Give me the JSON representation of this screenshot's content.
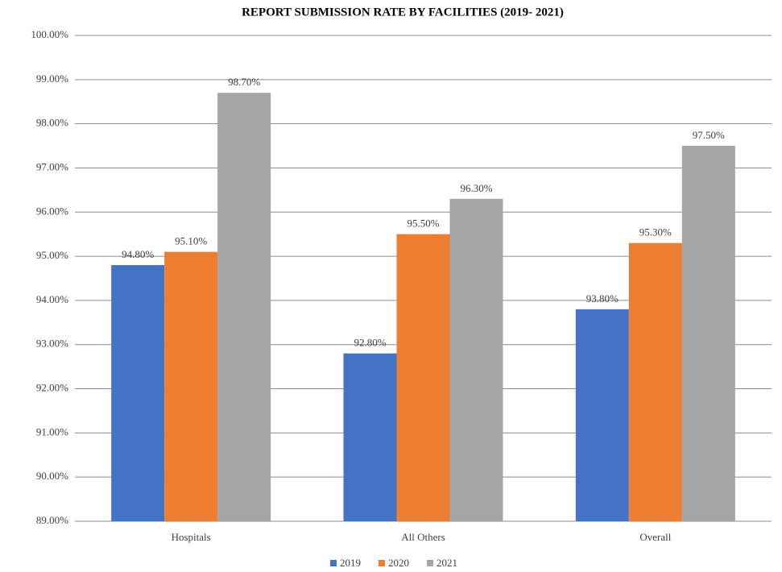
{
  "chart_data": {
    "type": "bar",
    "title": "REPORT SUBMISSION RATE BY FACILITIES (2019- 2021)",
    "categories": [
      "Hospitals",
      "All Others",
      "Overall"
    ],
    "series": [
      {
        "name": "2019",
        "color": "#4472c4",
        "values": [
          94.8,
          92.8,
          93.8
        ],
        "value_labels": [
          "94.80%",
          "92.80%",
          "93.80%"
        ]
      },
      {
        "name": "2020",
        "color": "#ed7d31",
        "values": [
          95.1,
          95.5,
          95.3
        ],
        "value_labels": [
          "95.10%",
          "95.50%",
          "95.30%"
        ]
      },
      {
        "name": "2021",
        "color": "#a5a5a5",
        "values": [
          98.7,
          96.3,
          97.5
        ],
        "value_labels": [
          "98.70%",
          "96.30%",
          "97.50%"
        ]
      }
    ],
    "ylim": [
      89,
      100
    ],
    "yticks": [
      {
        "value": 89,
        "label": "89.00%"
      },
      {
        "value": 90,
        "label": "90.00%"
      },
      {
        "value": 91,
        "label": "91.00%"
      },
      {
        "value": 92,
        "label": "92.00%"
      },
      {
        "value": 93,
        "label": "93.00%"
      },
      {
        "value": 94,
        "label": "94.00%"
      },
      {
        "value": 95,
        "label": "95.00%"
      },
      {
        "value": 96,
        "label": "96.00%"
      },
      {
        "value": 97,
        "label": "97.00%"
      },
      {
        "value": 98,
        "label": "98.00%"
      },
      {
        "value": 99,
        "label": "99.00%"
      },
      {
        "value": 100,
        "label": "100.00%"
      }
    ],
    "grid": true,
    "legend": "bottom"
  }
}
